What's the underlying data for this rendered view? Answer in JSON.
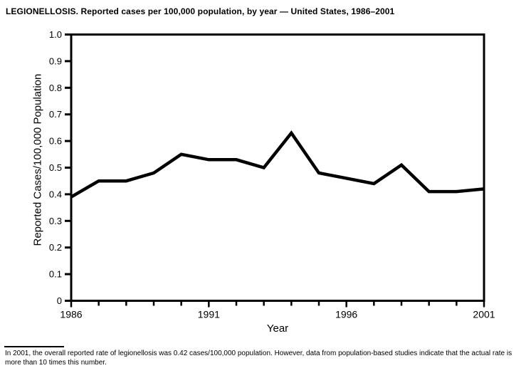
{
  "title": "LEGIONELLOSIS. Reported cases per 100,000 population, by year — United States, 1986–2001",
  "chart_data": {
    "type": "line",
    "title": "LEGIONELLOSIS. Reported cases per 100,000 population, by year — United States, 1986–2001",
    "xlabel": "Year",
    "ylabel": "Reported Cases/100,000 Population",
    "x": [
      1986,
      1987,
      1988,
      1989,
      1990,
      1991,
      1992,
      1993,
      1994,
      1995,
      1996,
      1997,
      1998,
      1999,
      2000,
      2001
    ],
    "values": [
      0.39,
      0.45,
      0.45,
      0.48,
      0.55,
      0.53,
      0.53,
      0.5,
      0.63,
      0.48,
      0.46,
      0.44,
      0.51,
      0.41,
      0.41,
      0.42
    ],
    "xlim": [
      1986,
      2001
    ],
    "ylim": [
      0,
      1.0
    ],
    "yticks": [
      {
        "value": 1.0,
        "label": "1.0"
      },
      {
        "value": 0.9,
        "label": "0.9"
      },
      {
        "value": 0.8,
        "label": "0.8"
      },
      {
        "value": 0.7,
        "label": "0.7"
      },
      {
        "value": 0.6,
        "label": "0.6"
      },
      {
        "value": 0.5,
        "label": "0.5"
      },
      {
        "value": 0.4,
        "label": "0.4"
      },
      {
        "value": 0.3,
        "label": "0.3"
      },
      {
        "value": 0.2,
        "label": "0.2"
      },
      {
        "value": 0.1,
        "label": "0.1"
      },
      {
        "value": 0,
        "label": "0"
      }
    ],
    "xticks_labeled": [
      1986,
      1991,
      1996,
      2001
    ],
    "grid": false,
    "legend": "none",
    "line_color": "#000000",
    "axis_color": "#000000",
    "background_color": "#ffffff",
    "line_width": 4.5
  },
  "footnote": "In 2001, the overall reported rate of legionellosis was 0.42 cases/100,000 population. However, data from population-based studies indicate that the actual rate is more than 10 times this number."
}
